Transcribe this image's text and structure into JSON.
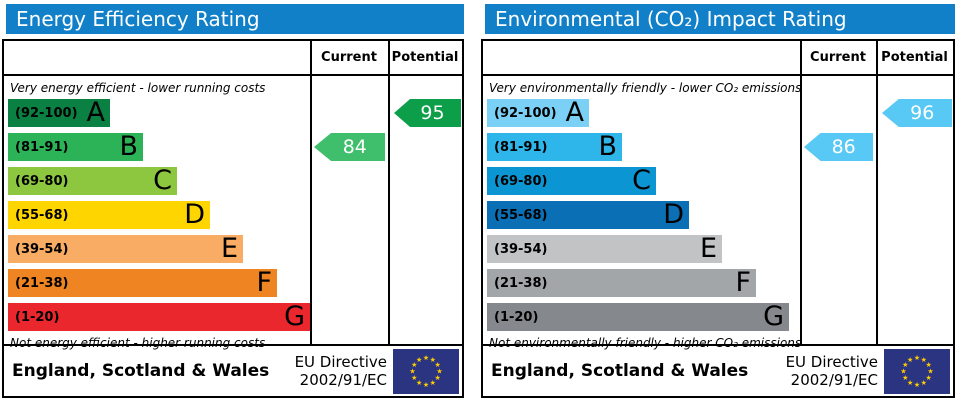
{
  "panels": [
    {
      "title": "Energy Efficiency Rating",
      "header_color": "#1180c8",
      "columns": {
        "current": "Current",
        "potential": "Potential"
      },
      "top_note": "Very energy efficient - lower running costs",
      "bottom_note": "Not energy efficient - higher running costs",
      "bands": [
        {
          "range": "(92-100)",
          "letter": "A",
          "color": "#0b8043"
        },
        {
          "range": "(81-91)",
          "letter": "B",
          "color": "#2cb357"
        },
        {
          "range": "(69-80)",
          "letter": "C",
          "color": "#8dc63f"
        },
        {
          "range": "(55-68)",
          "letter": "D",
          "color": "#ffd500"
        },
        {
          "range": "(39-54)",
          "letter": "E",
          "color": "#f9ac63"
        },
        {
          "range": "(21-38)",
          "letter": "F",
          "color": "#ee8522"
        },
        {
          "range": "(1-20)",
          "letter": "G",
          "color": "#e9272d"
        }
      ],
      "current": {
        "value": "84",
        "band_index": 1,
        "color": "#3fbe6b"
      },
      "potential": {
        "value": "95",
        "band_index": 0,
        "color": "#0c9e49"
      },
      "footer": {
        "region": "England, Scotland & Wales",
        "directive_line1": "EU Directive",
        "directive_line2": "2002/91/EC",
        "flag_bg": "#2a3480",
        "flag_star_color": "#ffcc00"
      }
    },
    {
      "title": "Environmental (CO₂) Impact Rating",
      "header_color": "#1180c8",
      "columns": {
        "current": "Current",
        "potential": "Potential"
      },
      "top_note": "Very environmentally friendly - lower CO₂ emissions",
      "bottom_note": "Not environmentally friendly - higher CO₂ emissions",
      "bands": [
        {
          "range": "(92-100)",
          "letter": "A",
          "color": "#7bd0f5"
        },
        {
          "range": "(81-91)",
          "letter": "B",
          "color": "#2eb5e9"
        },
        {
          "range": "(69-80)",
          "letter": "C",
          "color": "#0c95d3"
        },
        {
          "range": "(55-68)",
          "letter": "D",
          "color": "#0a6fb4"
        },
        {
          "range": "(39-54)",
          "letter": "E",
          "color": "#c2c3c5"
        },
        {
          "range": "(21-38)",
          "letter": "F",
          "color": "#a3a6a9"
        },
        {
          "range": "(1-20)",
          "letter": "G",
          "color": "#85888c"
        }
      ],
      "current": {
        "value": "86",
        "band_index": 1,
        "color": "#58c8f4"
      },
      "potential": {
        "value": "96",
        "band_index": 0,
        "color": "#58c8f4"
      },
      "footer": {
        "region": "England, Scotland & Wales",
        "directive_line1": "EU Directive",
        "directive_line2": "2002/91/EC",
        "flag_bg": "#2a3480",
        "flag_star_color": "#ffcc00"
      }
    }
  ],
  "chart_data": [
    {
      "type": "bar",
      "title": "Energy Efficiency Rating",
      "categories": [
        "A (92-100)",
        "B (81-91)",
        "C (69-80)",
        "D (55-68)",
        "E (39-54)",
        "F (21-38)",
        "G (1-20)"
      ],
      "series": [
        {
          "name": "Current",
          "values": [
            84
          ],
          "band": "B"
        },
        {
          "name": "Potential",
          "values": [
            95
          ],
          "band": "A"
        }
      ],
      "xlabel": "",
      "ylabel": "",
      "ylim": [
        1,
        100
      ],
      "annotations": [
        "Very energy efficient - lower running costs",
        "Not energy efficient - higher running costs",
        "England, Scotland & Wales",
        "EU Directive 2002/91/EC"
      ]
    },
    {
      "type": "bar",
      "title": "Environmental (CO₂) Impact Rating",
      "categories": [
        "A (92-100)",
        "B (81-91)",
        "C (69-80)",
        "D (55-68)",
        "E (39-54)",
        "F (21-38)",
        "G (1-20)"
      ],
      "series": [
        {
          "name": "Current",
          "values": [
            86
          ],
          "band": "B"
        },
        {
          "name": "Potential",
          "values": [
            96
          ],
          "band": "A"
        }
      ],
      "xlabel": "",
      "ylabel": "",
      "ylim": [
        1,
        100
      ],
      "annotations": [
        "Very environmentally friendly - lower CO₂ emissions",
        "Not environmentally friendly - higher CO₂ emissions",
        "England, Scotland & Wales",
        "EU Directive 2002/91/EC"
      ]
    }
  ]
}
